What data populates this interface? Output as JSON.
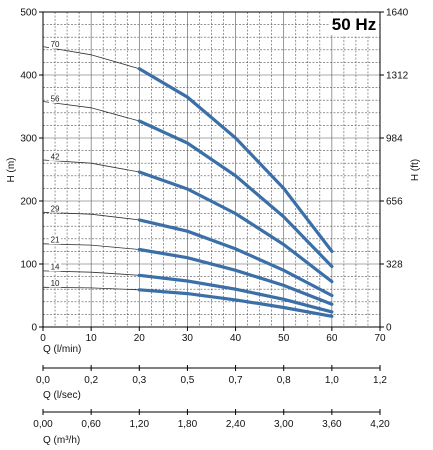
{
  "chart_data": {
    "type": "line",
    "frequency_label": "50 Hz",
    "xlabel": "Q (l/min)",
    "ylabel": "H (m)",
    "ylabel_right": "H (ft)",
    "xlim": [
      0,
      70
    ],
    "ylim": [
      0,
      500
    ],
    "xticks": [
      "0",
      "10",
      "20",
      "30",
      "40",
      "50",
      "60",
      "70"
    ],
    "yticks": [
      "0",
      "100",
      "200",
      "300",
      "400",
      "500"
    ],
    "yticks_right": [
      "0",
      "328",
      "656",
      "984",
      "1312",
      "1640"
    ],
    "secondary_axes": [
      {
        "label": "Q (l/sec)",
        "ticks": [
          "0,0",
          "0,2",
          "0,3",
          "0,5",
          "0,7",
          "0,8",
          "1,0",
          "1,2"
        ]
      },
      {
        "label": "Q (m³/h)",
        "ticks": [
          "0,00",
          "0,60",
          "1,20",
          "1,80",
          "2,40",
          "3,00",
          "3,60",
          "4,20"
        ]
      }
    ],
    "grid": true,
    "operating_range_l_min": [
      20,
      60
    ],
    "series": [
      {
        "name": "70",
        "x": [
          0,
          10,
          20,
          30,
          40,
          50,
          60
        ],
        "y": [
          445,
          432,
          410,
          365,
          300,
          220,
          120
        ]
      },
      {
        "name": "56",
        "x": [
          0,
          10,
          20,
          30,
          40,
          50,
          60
        ],
        "y": [
          358,
          348,
          327,
          292,
          240,
          175,
          96
        ]
      },
      {
        "name": "42",
        "x": [
          0,
          10,
          20,
          30,
          40,
          50,
          60
        ],
        "y": [
          265,
          260,
          246,
          219,
          180,
          131,
          72
        ]
      },
      {
        "name": "29",
        "x": [
          0,
          10,
          20,
          30,
          40,
          50,
          60
        ],
        "y": [
          182,
          179,
          170,
          152,
          124,
          90,
          50
        ]
      },
      {
        "name": "21",
        "x": [
          0,
          10,
          20,
          30,
          40,
          50,
          60
        ],
        "y": [
          132,
          130,
          123,
          110,
          90,
          66,
          36
        ]
      },
      {
        "name": "14",
        "x": [
          0,
          10,
          20,
          30,
          40,
          50,
          60
        ],
        "y": [
          89,
          87,
          82,
          73,
          60,
          44,
          24
        ]
      },
      {
        "name": "10",
        "x": [
          0,
          10,
          20,
          30,
          40,
          50,
          60
        ],
        "y": [
          63,
          62,
          59,
          53,
          43,
          31,
          17
        ]
      }
    ],
    "colors": {
      "curve": "#3a6fa8",
      "extension": "#333333",
      "grid": "#555555"
    }
  }
}
